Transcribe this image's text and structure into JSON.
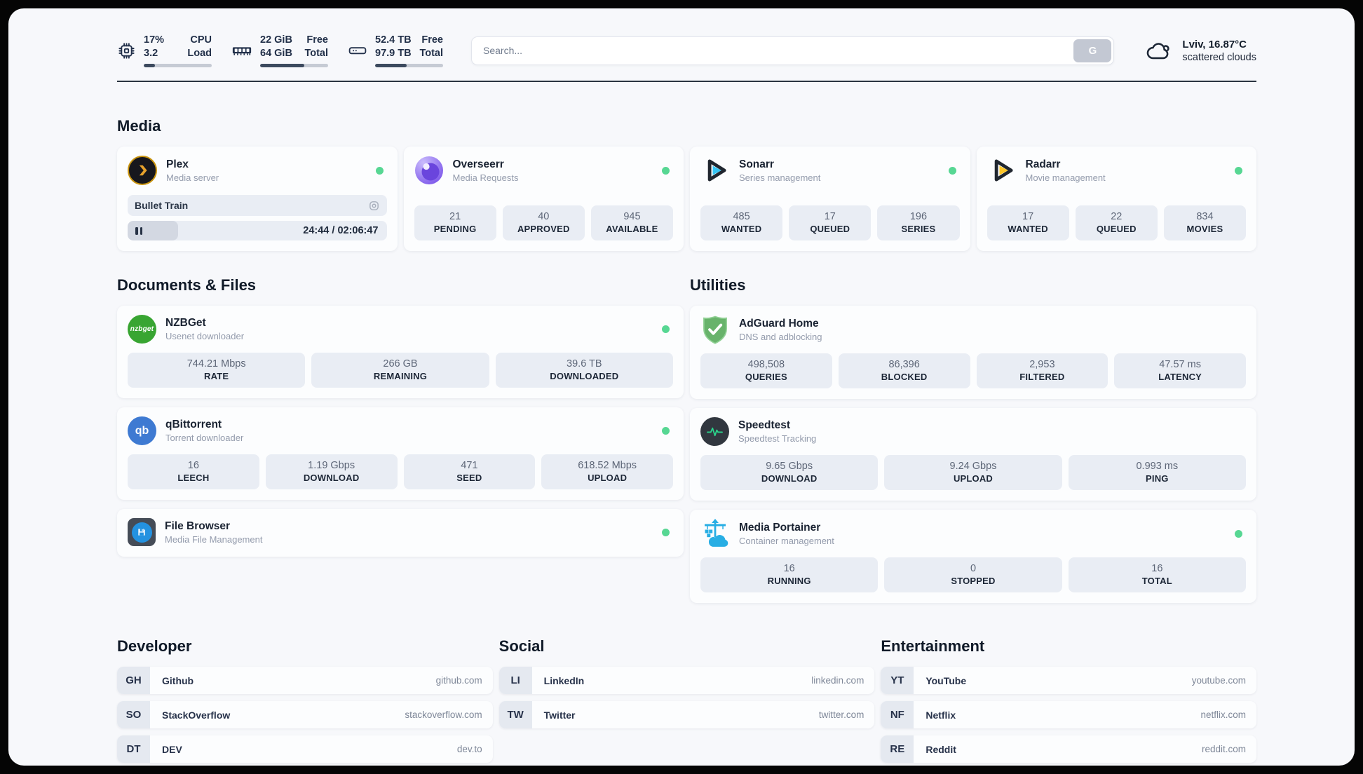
{
  "theme": {
    "page_bg": "#f7f8fb",
    "card_bg": "#fcfdfe",
    "tile_bg": "#e9edf4",
    "text_dark": "#1c2636",
    "text_muted": "#939bac",
    "status_online": "#57d793",
    "progress_fill": "#3c4a5e"
  },
  "header": {
    "stats": [
      {
        "icon": "cpu-icon",
        "line1_value": "17%",
        "line1_label": "CPU",
        "line2_value": "3.2",
        "line2_label": "Load",
        "progress_pct": 17
      },
      {
        "icon": "ram-icon",
        "line1_value": "22 GiB",
        "line1_label": "Free",
        "line2_value": "64 GiB",
        "line2_label": "Total",
        "progress_pct": 65
      },
      {
        "icon": "disk-icon",
        "line1_value": "52.4 TB",
        "line1_label": "Free",
        "line2_value": "97.9 TB",
        "line2_label": "Total",
        "progress_pct": 46
      }
    ],
    "search": {
      "placeholder": "Search...",
      "button_label": "G"
    },
    "weather": {
      "icon": "cloud-icon",
      "location_temp": "Lviv, 16.87°C",
      "condition": "scattered clouds"
    }
  },
  "media": {
    "title": "Media",
    "plex": {
      "name": "Plex",
      "description": "Media server",
      "status": "online",
      "now_playing": {
        "title": "Bullet Train",
        "time_display": "24:44 / 02:06:47",
        "progress_pct": 19.5
      }
    },
    "overseerr": {
      "name": "Overseerr",
      "description": "Media Requests",
      "status": "online",
      "stats": [
        {
          "value": "21",
          "label": "PENDING"
        },
        {
          "value": "40",
          "label": "APPROVED"
        },
        {
          "value": "945",
          "label": "AVAILABLE"
        }
      ]
    },
    "sonarr": {
      "name": "Sonarr",
      "description": "Series management",
      "status": "online",
      "stats": [
        {
          "value": "485",
          "label": "WANTED"
        },
        {
          "value": "17",
          "label": "QUEUED"
        },
        {
          "value": "196",
          "label": "SERIES"
        }
      ]
    },
    "radarr": {
      "name": "Radarr",
      "description": "Movie management",
      "status": "online",
      "stats": [
        {
          "value": "17",
          "label": "WANTED"
        },
        {
          "value": "22",
          "label": "QUEUED"
        },
        {
          "value": "834",
          "label": "MOVIES"
        }
      ]
    }
  },
  "documents": {
    "title": "Documents & Files",
    "nzbget": {
      "name": "NZBGet",
      "description": "Usenet downloader",
      "status": "online",
      "icon_text": "nzbget",
      "stats": [
        {
          "value": "744.21 Mbps",
          "label": "RATE"
        },
        {
          "value": "266 GB",
          "label": "REMAINING"
        },
        {
          "value": "39.6 TB",
          "label": "DOWNLOADED"
        }
      ]
    },
    "qbittorrent": {
      "name": "qBittorrent",
      "description": "Torrent downloader",
      "status": "online",
      "icon_text": "qb",
      "stats": [
        {
          "value": "16",
          "label": "LEECH"
        },
        {
          "value": "1.19 Gbps",
          "label": "DOWNLOAD"
        },
        {
          "value": "471",
          "label": "SEED"
        },
        {
          "value": "618.52 Mbps",
          "label": "UPLOAD"
        }
      ]
    },
    "filebrowser": {
      "name": "File Browser",
      "description": "Media File Management",
      "status": "online"
    }
  },
  "utilities": {
    "title": "Utilities",
    "adguard": {
      "name": "AdGuard Home",
      "description": "DNS and adblocking",
      "stats": [
        {
          "value": "498,508",
          "label": "QUERIES"
        },
        {
          "value": "86,396",
          "label": "BLOCKED"
        },
        {
          "value": "2,953",
          "label": "FILTERED"
        },
        {
          "value": "47.57 ms",
          "label": "LATENCY"
        }
      ]
    },
    "speedtest": {
      "name": "Speedtest",
      "description": "Speedtest Tracking",
      "stats": [
        {
          "value": "9.65 Gbps",
          "label": "DOWNLOAD"
        },
        {
          "value": "9.24 Gbps",
          "label": "UPLOAD"
        },
        {
          "value": "0.993 ms",
          "label": "PING"
        }
      ]
    },
    "portainer": {
      "name": "Media Portainer",
      "description": "Container management",
      "status": "online",
      "stats": [
        {
          "value": "16",
          "label": "RUNNING"
        },
        {
          "value": "0",
          "label": "STOPPED"
        },
        {
          "value": "16",
          "label": "TOTAL"
        }
      ]
    }
  },
  "links": {
    "developer": {
      "title": "Developer",
      "items": [
        {
          "abbr": "GH",
          "name": "Github",
          "url": "github.com"
        },
        {
          "abbr": "SO",
          "name": "StackOverflow",
          "url": "stackoverflow.com"
        },
        {
          "abbr": "DT",
          "name": "DEV",
          "url": "dev.to"
        }
      ]
    },
    "social": {
      "title": "Social",
      "items": [
        {
          "abbr": "LI",
          "name": "LinkedIn",
          "url": "linkedin.com"
        },
        {
          "abbr": "TW",
          "name": "Twitter",
          "url": "twitter.com"
        }
      ]
    },
    "entertainment": {
      "title": "Entertainment",
      "items": [
        {
          "abbr": "YT",
          "name": "YouTube",
          "url": "youtube.com"
        },
        {
          "abbr": "NF",
          "name": "Netflix",
          "url": "netflix.com"
        },
        {
          "abbr": "RE",
          "name": "Reddit",
          "url": "reddit.com"
        }
      ]
    }
  }
}
